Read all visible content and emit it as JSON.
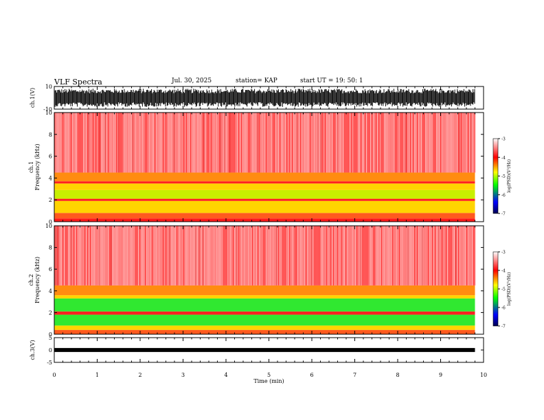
{
  "header": {
    "title": "VLF Spectra",
    "date": "Jul. 30, 2025",
    "station": "station= KAP",
    "start": "start  UT =   19: 50: 1"
  },
  "chart_data": [
    {
      "type": "line",
      "panel": "ch1-waveform",
      "ylabel": "ch.1(V)",
      "ylim": [
        -10,
        10
      ],
      "ytick_labels": [
        "-10",
        "10"
      ],
      "xlim": [
        0,
        10
      ],
      "xmax_data": 9.8,
      "description_values": {
        "approx_amplitude_range": [
          -8,
          8
        ]
      }
    },
    {
      "type": "heatmap",
      "panel": "ch1-spectrogram",
      "ylabel_line1": "ch.1",
      "ylabel_line2": "Frequency  (kHz)",
      "ylim": [
        0,
        10
      ],
      "ytick_labels": [
        "0",
        "2",
        "4",
        "6",
        "8",
        "10"
      ],
      "xlim": [
        0,
        10
      ],
      "xmax_data": 9.8,
      "colorbar": {
        "label": "log(PSD)(V²/Hz)",
        "range": [
          -7,
          -3
        ],
        "tick_labels": [
          "-3",
          "-4",
          "-5",
          "-6",
          "-7"
        ],
        "colors": [
          "#000050",
          "#0000ff",
          "#00ff00",
          "#ffff00",
          "#ff0000",
          "#ffffff"
        ]
      },
      "frequency_bands_khz": [
        {
          "from": 0.0,
          "to": 0.3,
          "level": "red"
        },
        {
          "from": 0.3,
          "to": 0.8,
          "level": "orange-red"
        },
        {
          "from": 0.8,
          "to": 1.9,
          "level": "yellow"
        },
        {
          "from": 1.9,
          "to": 2.1,
          "level": "red-line"
        },
        {
          "from": 2.1,
          "to": 2.9,
          "level": "yellow-green"
        },
        {
          "from": 2.9,
          "to": 3.5,
          "level": "yellow"
        },
        {
          "from": 3.5,
          "to": 3.7,
          "level": "red-line"
        },
        {
          "from": 3.7,
          "to": 4.5,
          "level": "orange"
        },
        {
          "from": 4.5,
          "to": 10.0,
          "level": "light-red"
        }
      ]
    },
    {
      "type": "heatmap",
      "panel": "ch2-spectrogram",
      "ylabel_line1": "ch.2",
      "ylabel_line2": "Frequency  (kHz)",
      "ylim": [
        0,
        10
      ],
      "ytick_labels": [
        "0",
        "2",
        "4",
        "6",
        "8",
        "10"
      ],
      "xlim": [
        0,
        10
      ],
      "xmax_data": 9.8,
      "colorbar": {
        "label": "log(PSD)(V²/Hz)",
        "range": [
          -7,
          -3
        ],
        "tick_labels": [
          "-3",
          "-4",
          "-5",
          "-6",
          "-7"
        ],
        "colors": [
          "#000050",
          "#0000ff",
          "#00ff00",
          "#ffff00",
          "#ff0000",
          "#ffffff"
        ]
      },
      "frequency_bands_khz": [
        {
          "from": 0.0,
          "to": 0.4,
          "level": "orange-red"
        },
        {
          "from": 0.4,
          "to": 0.8,
          "level": "yellow"
        },
        {
          "from": 0.8,
          "to": 1.8,
          "level": "green"
        },
        {
          "from": 1.8,
          "to": 2.1,
          "level": "red-line"
        },
        {
          "from": 2.1,
          "to": 3.3,
          "level": "green"
        },
        {
          "from": 3.3,
          "to": 3.6,
          "level": "yellow"
        },
        {
          "from": 3.6,
          "to": 4.5,
          "level": "orange"
        },
        {
          "from": 4.5,
          "to": 10.0,
          "level": "light-red"
        }
      ]
    },
    {
      "type": "line",
      "panel": "ch3-waveform",
      "ylabel": "ch.3(V)",
      "ylim": [
        -5,
        5
      ],
      "ytick_labels": [
        "-5",
        "0",
        "5"
      ],
      "xlim": [
        0,
        10
      ],
      "xmax_data": 9.8,
      "description_values": {
        "approx_amplitude_range": [
          -0.5,
          0.5
        ]
      }
    }
  ],
  "xaxis": {
    "label": "Time  (min)",
    "tick_labels": [
      "0",
      "1",
      "2",
      "3",
      "4",
      "5",
      "6",
      "7",
      "8",
      "9",
      "10"
    ],
    "range": [
      0,
      10
    ]
  }
}
